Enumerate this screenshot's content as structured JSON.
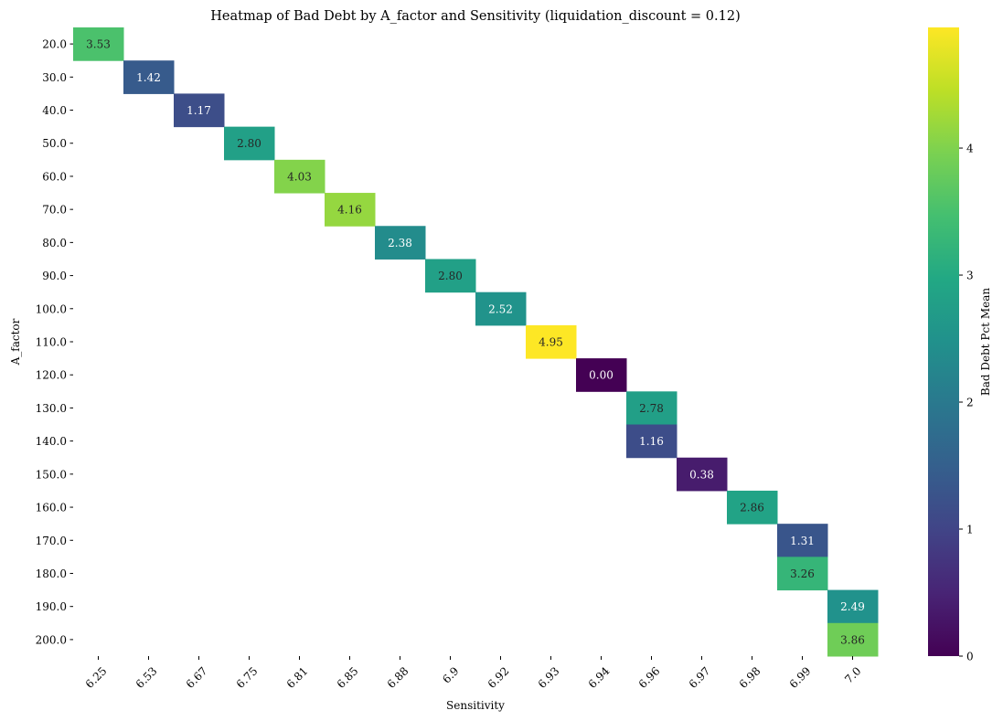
{
  "chart_data": {
    "type": "heatmap",
    "title": "Heatmap of Bad Debt by A_factor and Sensitivity (liquidation_discount = 0.12)",
    "xlabel": "Sensitivity",
    "ylabel": "A_factor",
    "x_categories": [
      "6.25",
      "6.53",
      "6.67",
      "6.75",
      "6.81",
      "6.85",
      "6.88",
      "6.9",
      "6.92",
      "6.93",
      "6.94",
      "6.96",
      "6.97",
      "6.98",
      "6.99",
      "7.0"
    ],
    "y_categories": [
      "20.0",
      "30.0",
      "40.0",
      "50.0",
      "60.0",
      "70.0",
      "80.0",
      "90.0",
      "100.0",
      "110.0",
      "120.0",
      "130.0",
      "140.0",
      "150.0",
      "160.0",
      "170.0",
      "180.0",
      "190.0",
      "200.0"
    ],
    "cells": [
      {
        "y": "20.0",
        "x": "6.25",
        "value": 3.53,
        "label": "3.53"
      },
      {
        "y": "30.0",
        "x": "6.53",
        "value": 1.42,
        "label": "1.42"
      },
      {
        "y": "40.0",
        "x": "6.67",
        "value": 1.17,
        "label": "1.17"
      },
      {
        "y": "50.0",
        "x": "6.75",
        "value": 2.8,
        "label": "2.80"
      },
      {
        "y": "60.0",
        "x": "6.81",
        "value": 4.03,
        "label": "4.03"
      },
      {
        "y": "70.0",
        "x": "6.85",
        "value": 4.16,
        "label": "4.16"
      },
      {
        "y": "80.0",
        "x": "6.88",
        "value": 2.38,
        "label": "2.38"
      },
      {
        "y": "90.0",
        "x": "6.9",
        "value": 2.8,
        "label": "2.80"
      },
      {
        "y": "100.0",
        "x": "6.92",
        "value": 2.52,
        "label": "2.52"
      },
      {
        "y": "110.0",
        "x": "6.93",
        "value": 4.95,
        "label": "4.95"
      },
      {
        "y": "120.0",
        "x": "6.94",
        "value": 0.0,
        "label": "0.00"
      },
      {
        "y": "130.0",
        "x": "6.96",
        "value": 2.78,
        "label": "2.78"
      },
      {
        "y": "140.0",
        "x": "6.96",
        "value": 1.16,
        "label": "1.16"
      },
      {
        "y": "150.0",
        "x": "6.97",
        "value": 0.38,
        "label": "0.38"
      },
      {
        "y": "160.0",
        "x": "6.98",
        "value": 2.86,
        "label": "2.86"
      },
      {
        "y": "170.0",
        "x": "6.99",
        "value": 1.31,
        "label": "1.31"
      },
      {
        "y": "180.0",
        "x": "6.99",
        "value": 3.26,
        "label": "3.26"
      },
      {
        "y": "190.0",
        "x": "7.0",
        "value": 2.49,
        "label": "2.49"
      },
      {
        "y": "200.0",
        "x": "7.0",
        "value": 3.86,
        "label": "3.86"
      }
    ],
    "colorbar": {
      "label": "Bad Debt Pct Mean",
      "colormap": "viridis",
      "range": [
        0,
        4.95
      ],
      "ticks": [
        "0",
        "1",
        "2",
        "3",
        "4"
      ]
    }
  }
}
